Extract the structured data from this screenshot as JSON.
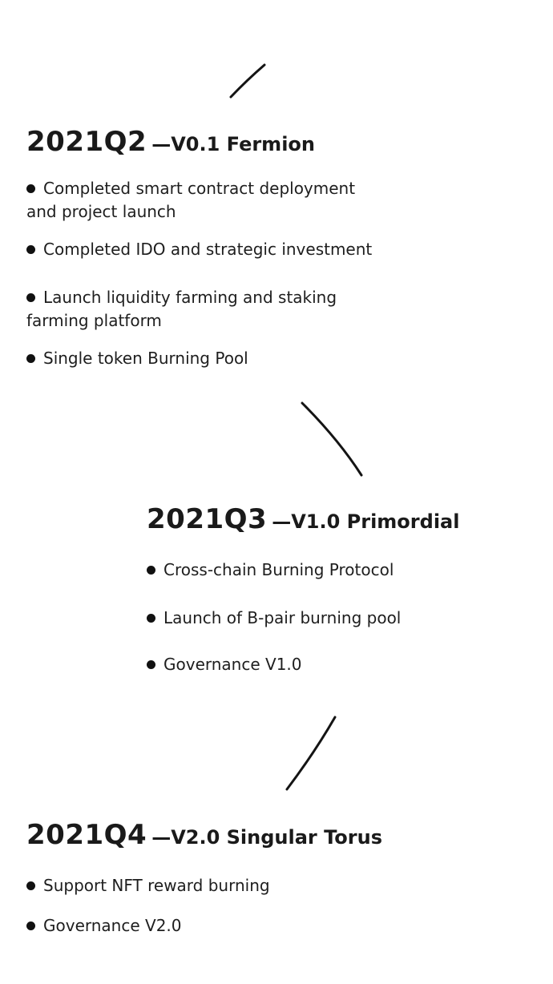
{
  "phases": [
    {
      "year": "2021Q2",
      "version": "—V0.1 Fermion",
      "milestones": [
        {
          "line1": "Completed smart contract deployment",
          "line2": "and project launch"
        },
        {
          "line1": "Completed IDO and strategic investment"
        },
        {
          "line1": "Launch liquidity farming and staking",
          "line2": "farming platform"
        },
        {
          "line1": "Single token Burning Pool"
        }
      ]
    },
    {
      "year": "2021Q3",
      "version": "—V1.0 Primordial",
      "milestones": [
        {
          "line1": "Cross-chain Burning Protocol"
        },
        {
          "line1": "Launch of B-pair burning pool"
        },
        {
          "line1": "Governance V1.0"
        }
      ]
    },
    {
      "year": "2021Q4",
      "version": "—V2.0 Singular Torus",
      "milestones": [
        {
          "line1": "Support NFT reward burning"
        },
        {
          "line1": "Governance V2.0"
        }
      ]
    }
  ],
  "colors": {
    "text": "#1e1e1e",
    "connector": "#141414",
    "background": "#ffffff"
  },
  "icons": {
    "connector": "curved-connector-line",
    "bullet": "filled-circle-bullet"
  }
}
